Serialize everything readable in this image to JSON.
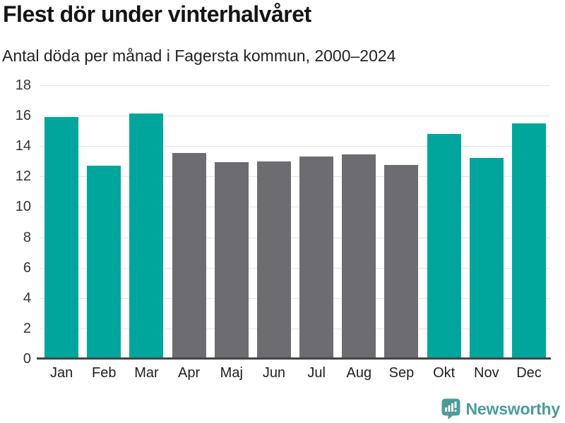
{
  "header": {
    "title": "Flest dör under vinterhalvåret",
    "subtitle": "Antal döda per månad i Fagersta kommun, 2000–2024"
  },
  "footer": {
    "brand": "Newsworthy",
    "brand_color": "#4a9c99",
    "logo_icon": "newsworthy-speech-bubble-bar-chart-icon"
  },
  "chart_data": {
    "type": "bar",
    "title": "Flest dör under vinterhalvåret",
    "subtitle": "Antal döda per månad i Fagersta kommun, 2000–2024",
    "categories": [
      "Jan",
      "Feb",
      "Mar",
      "Apr",
      "Maj",
      "Jun",
      "Jul",
      "Aug",
      "Sep",
      "Okt",
      "Nov",
      "Dec"
    ],
    "values": [
      15.9,
      12.7,
      16.15,
      13.55,
      12.95,
      13.0,
      13.3,
      13.45,
      12.75,
      14.8,
      13.2,
      15.5
    ],
    "bar_colors": [
      "#00a69c",
      "#00a69c",
      "#00a69c",
      "#6d6d71",
      "#6d6d71",
      "#6d6d71",
      "#6d6d71",
      "#6d6d71",
      "#6d6d71",
      "#00a69c",
      "#00a69c",
      "#00a69c"
    ],
    "highlight_color": "#00a69c",
    "muted_color": "#6d6d71",
    "xlabel": "",
    "ylabel": "",
    "ylim": [
      0,
      18
    ],
    "y_ticks": [
      0,
      2,
      4,
      6,
      8,
      10,
      12,
      14,
      16,
      18
    ],
    "grid": "horizontal",
    "gridline_color": "#e3e3e3",
    "baseline_color": "#454545",
    "legend_position": "none"
  }
}
